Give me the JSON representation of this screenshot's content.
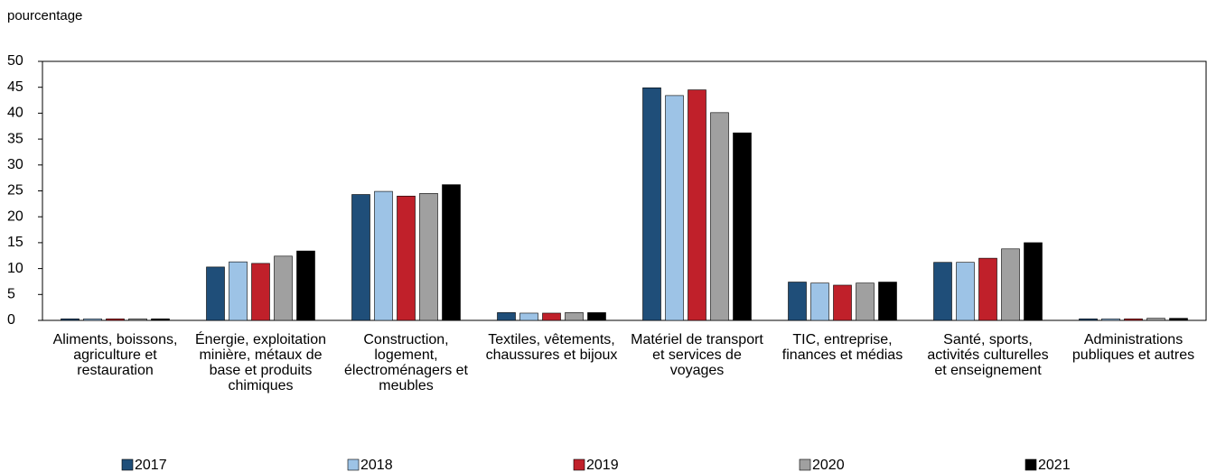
{
  "chart_data": {
    "type": "bar",
    "y_label": "pourcentage",
    "categories": [
      "Aliments, boissons, agriculture et restauration",
      "Énergie, exploitation minière, métaux de base et produits chimiques",
      "Construction, logement, électroménagers et meubles",
      "Textiles, vêtements, chaussures et bijoux",
      "Matériel de transport et services de voyages",
      "TIC, entreprise, finances et médias",
      "Santé, sports, activités culturelles et enseignement",
      "Administrations publiques et autres"
    ],
    "series": [
      {
        "name": "2017",
        "color": "#1f4e79",
        "values": [
          0.3,
          10.3,
          24.3,
          1.5,
          44.9,
          7.4,
          11.2,
          0.3
        ]
      },
      {
        "name": "2018",
        "color": "#9dc3e6",
        "values": [
          0.3,
          11.3,
          24.9,
          1.4,
          43.4,
          7.2,
          11.2,
          0.3
        ]
      },
      {
        "name": "2019",
        "color": "#c0202a",
        "values": [
          0.3,
          11.0,
          24.0,
          1.4,
          44.5,
          6.8,
          12.0,
          0.3
        ]
      },
      {
        "name": "2020",
        "color": "#a0a0a0",
        "values": [
          0.3,
          12.4,
          24.5,
          1.5,
          40.1,
          7.2,
          13.8,
          0.4
        ]
      },
      {
        "name": "2021",
        "color": "#000000",
        "values": [
          0.3,
          13.4,
          26.2,
          1.5,
          36.2,
          7.4,
          15.0,
          0.4
        ]
      }
    ],
    "ylim": [
      0,
      50
    ],
    "yticks": [
      0,
      5,
      10,
      15,
      20,
      25,
      30,
      35,
      40,
      45,
      50
    ],
    "legend": "bottom"
  }
}
